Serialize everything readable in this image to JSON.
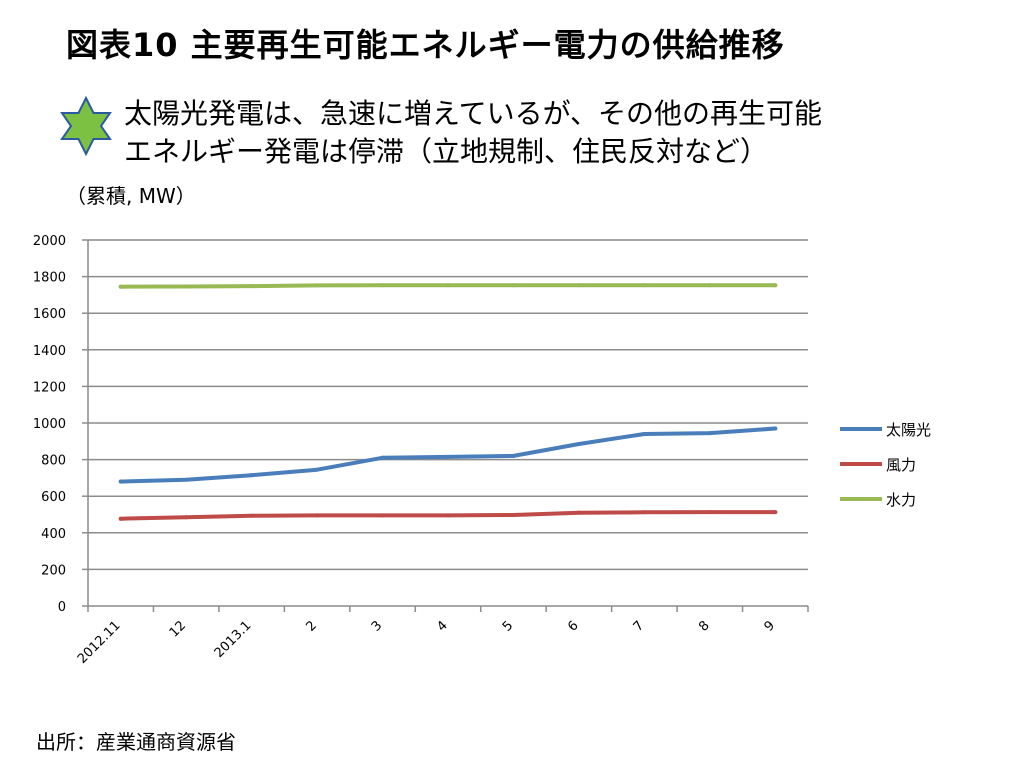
{
  "slide": {
    "title": "図表10 主要再生可能エネルギー電力の供給推移",
    "bullet_line1": "太陽光発電は、急速に増えているが、その他の再生可能",
    "bullet_line2": "エネルギー発電は停滞（立地規制、住民反対など）",
    "unit_note": "（累積, MW）",
    "source": "出所：産業通商資源省",
    "star_color": "#7dc142"
  },
  "chart_data": {
    "type": "line",
    "categories": [
      "2012.11",
      "12",
      "2013.1",
      "2",
      "3",
      "4",
      "5",
      "6",
      "7",
      "8",
      "9"
    ],
    "ylim": [
      0,
      2000
    ],
    "yticks": [
      0,
      200,
      400,
      600,
      800,
      1000,
      1200,
      1400,
      1600,
      1800,
      2000
    ],
    "grid": true,
    "legend_position": "right",
    "series": [
      {
        "name": "太陽光",
        "color": "#4a7ebb",
        "values": [
          680,
          690,
          715,
          745,
          810,
          815,
          820,
          885,
          940,
          945,
          970
        ]
      },
      {
        "name": "風力",
        "color": "#be4b48",
        "values": [
          477,
          485,
          493,
          495,
          495,
          495,
          497,
          510,
          512,
          513,
          513
        ]
      },
      {
        "name": "水力",
        "color": "#98b954",
        "values": [
          1745,
          1746,
          1748,
          1752,
          1753,
          1753,
          1753,
          1753,
          1753,
          1753,
          1753
        ]
      }
    ]
  }
}
